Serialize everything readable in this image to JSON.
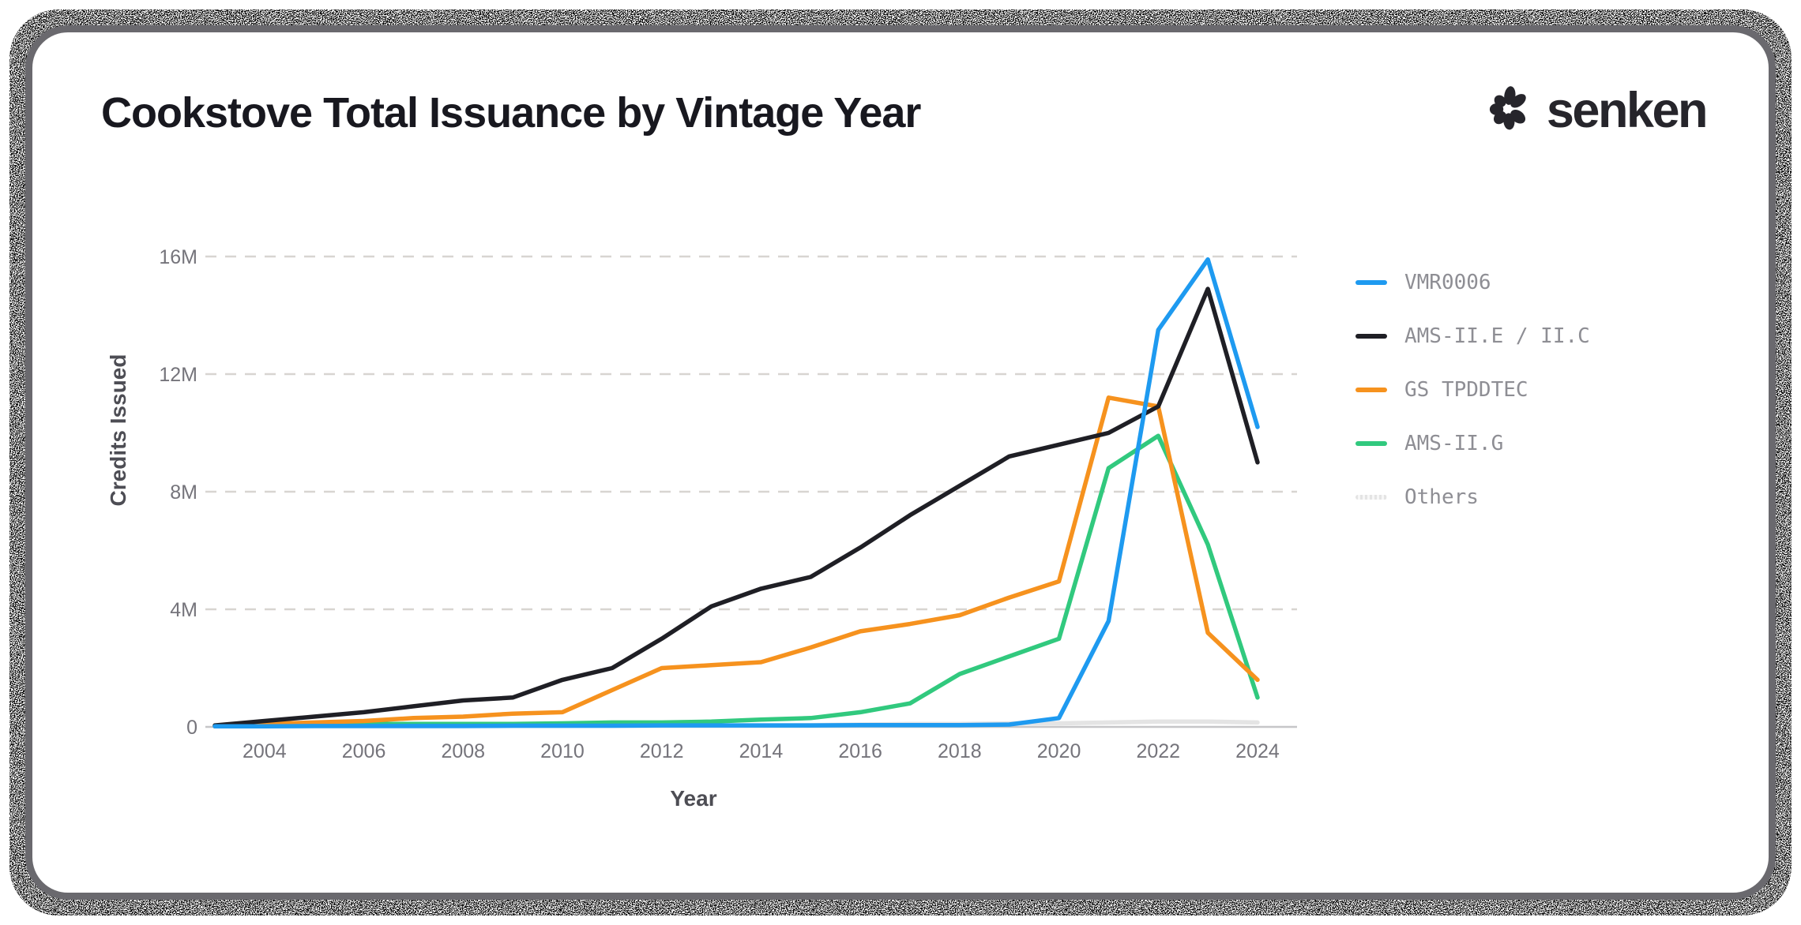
{
  "header": {
    "brand": "senken"
  },
  "colors": {
    "accent_blue": "#1e9af0",
    "line_black": "#1f1f25",
    "accent_orange": "#f6921e",
    "accent_green": "#31c97e",
    "others_gray": "#e4e4e4",
    "gridline": "#d8d5d1",
    "axis_line": "#c6c6c8",
    "tick_text": "#75747b",
    "legend_text": "#8e8e94",
    "title_text": "#18181f",
    "card_border": "#6a696e"
  },
  "chart_data": {
    "type": "line",
    "title": "Cookstove Total Issuance by Vintage Year",
    "xlabel": "Year",
    "ylabel": "Credits Issued",
    "units": "millions of credits",
    "grid": "horizontal dashed",
    "legend_position": "right",
    "ylim": [
      0,
      16.6
    ],
    "x": [
      2003,
      2004,
      2005,
      2006,
      2007,
      2008,
      2009,
      2010,
      2011,
      2012,
      2013,
      2014,
      2015,
      2016,
      2017,
      2018,
      2019,
      2020,
      2021,
      2022,
      2023,
      2024
    ],
    "x_tick_labels": [
      "2004",
      "2006",
      "2008",
      "2010",
      "2012",
      "2014",
      "2016",
      "2018",
      "2020",
      "2022",
      "2024"
    ],
    "y_ticks": [
      {
        "label": "16M",
        "value": 16
      },
      {
        "label": "12M",
        "value": 12
      },
      {
        "label": "8M",
        "value": 8
      },
      {
        "label": "4M",
        "value": 4
      },
      {
        "label": "0",
        "value": 0
      }
    ],
    "series": [
      {
        "name": "VMR0006",
        "color": "#1e9af0",
        "values": [
          0.02,
          0.02,
          0.03,
          0.03,
          0.03,
          0.03,
          0.04,
          0.04,
          0.04,
          0.05,
          0.05,
          0.05,
          0.05,
          0.06,
          0.06,
          0.06,
          0.08,
          0.3,
          3.6,
          13.5,
          15.9,
          10.2
        ]
      },
      {
        "name": "AMS-II.E / II.C",
        "color": "#1f1f25",
        "values": [
          0.05,
          0.2,
          0.35,
          0.5,
          0.7,
          0.9,
          1.0,
          1.6,
          2.0,
          3.0,
          4.1,
          4.7,
          5.1,
          6.1,
          7.2,
          8.2,
          9.2,
          9.6,
          10.0,
          10.9,
          14.9,
          9.0
        ]
      },
      {
        "name": "GS TPDDTEC",
        "color": "#f6921e",
        "values": [
          0.02,
          0.1,
          0.15,
          0.2,
          0.3,
          0.35,
          0.45,
          0.5,
          1.25,
          2.0,
          2.1,
          2.2,
          2.7,
          3.25,
          3.5,
          3.8,
          4.4,
          4.95,
          11.2,
          10.9,
          3.2,
          1.6
        ]
      },
      {
        "name": "AMS-II.G",
        "color": "#31c97e",
        "values": [
          0.03,
          0.05,
          0.08,
          0.1,
          0.1,
          0.1,
          0.1,
          0.12,
          0.15,
          0.15,
          0.18,
          0.25,
          0.3,
          0.5,
          0.8,
          1.8,
          2.4,
          3.0,
          8.8,
          9.9,
          6.2,
          1.0
        ]
      },
      {
        "name": "Others",
        "color": "#e4e4e4",
        "values": [
          0.02,
          0.02,
          0.02,
          0.02,
          0.02,
          0.03,
          0.03,
          0.03,
          0.04,
          0.04,
          0.05,
          0.05,
          0.06,
          0.08,
          0.1,
          0.1,
          0.12,
          0.12,
          0.15,
          0.18,
          0.18,
          0.15
        ]
      }
    ]
  }
}
